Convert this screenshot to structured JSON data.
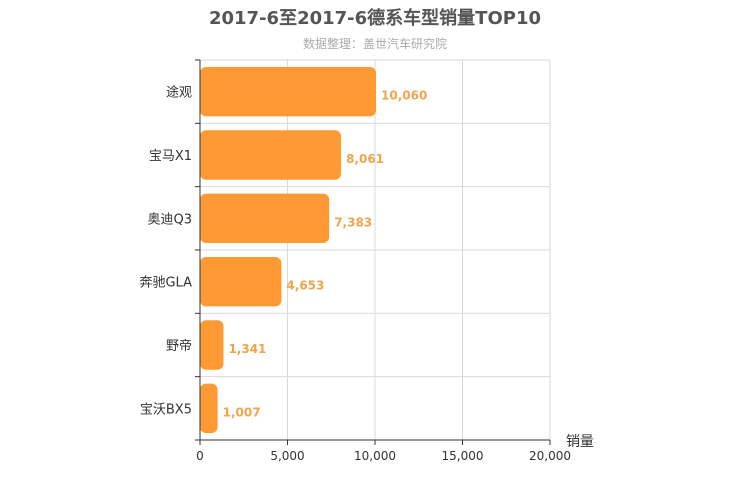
{
  "chart_data": {
    "type": "bar",
    "orientation": "horizontal",
    "title": "2017-6至2017-6德系车型销量TOP10",
    "subtitle": "数据整理：盖世汽车研究院",
    "categories": [
      "途观",
      "宝马X1",
      "奥迪Q3",
      "奔驰GLA",
      "野帝",
      "宝沃BX5"
    ],
    "values": [
      10060,
      8061,
      7383,
      4653,
      1341,
      1007
    ],
    "value_labels": [
      "10,060",
      "8,061",
      "7,383",
      "4,653",
      "1,341",
      "1,007"
    ],
    "xlabel": "销量",
    "ylabel": "",
    "xlim": [
      0,
      20000
    ],
    "xticks": [
      0,
      5000,
      10000,
      15000,
      20000
    ],
    "xtick_labels": [
      "0",
      "5,000",
      "10,000",
      "15,000",
      "20,000"
    ],
    "grid": true,
    "legend": "none",
    "colors": {
      "bar": "#ff9933",
      "value_label": "#f0a54a",
      "grid": "#d9d9d9",
      "axis": "#333333"
    }
  }
}
